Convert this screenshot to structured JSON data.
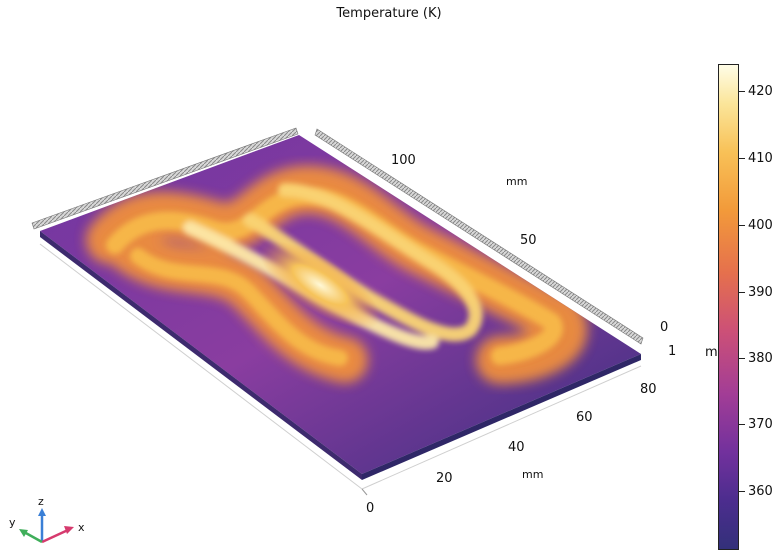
{
  "title": "Temperature (K)",
  "axes": {
    "x": {
      "unit": "mm",
      "ticks": [
        "0",
        "20",
        "40",
        "60",
        "80"
      ]
    },
    "y": {
      "unit": "mm",
      "ticks": [
        "0",
        "50",
        "100"
      ]
    },
    "z": {
      "unit": "m",
      "ticks": [
        "1"
      ]
    }
  },
  "triad": {
    "x": "x",
    "y": "y",
    "z": "z"
  },
  "colorbar": {
    "ticks": [
      "420",
      "410",
      "400",
      "390",
      "380",
      "370",
      "360"
    ],
    "colormap": "heat-camera",
    "colors": [
      "#fffde7",
      "#f8c157",
      "#e5704d",
      "#a23d96",
      "#33307a"
    ]
  }
}
